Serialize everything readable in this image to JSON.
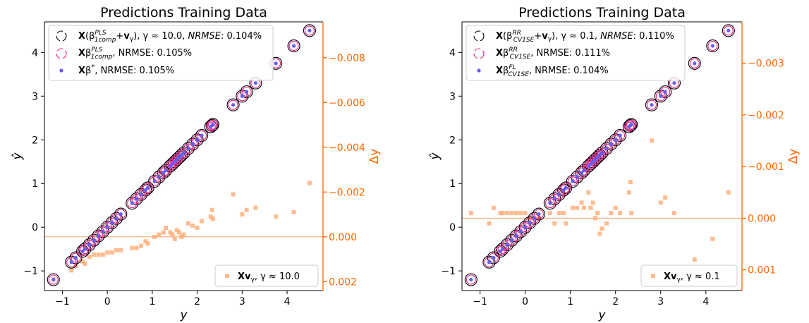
{
  "colors": {
    "ring_outer": "#000000",
    "ring_inner": "#e0218a",
    "dot": "#6a5cf2",
    "delta": "#ffa56b",
    "right_axis": "#ff6600"
  },
  "chart_data": [
    {
      "type": "scatter",
      "title": "Predictions Training Data",
      "xlabel": "y",
      "ylabel": "ŷ",
      "y2label": "Δy",
      "xlim": [
        -1.4,
        4.8
      ],
      "ylim": [
        -1.45,
        4.7
      ],
      "y2lim": [
        0.0024,
        -0.0096
      ],
      "y2_inverted": true,
      "xticks": [
        -1,
        0,
        1,
        2,
        3,
        4
      ],
      "yticks": [
        -1,
        0,
        1,
        2,
        3,
        4
      ],
      "y2ticks": [
        0.002,
        0.0,
        -0.002,
        -0.004,
        -0.006,
        -0.008
      ],
      "y2ticklabels": [
        "0.002",
        "0.000",
        "−0.002",
        "−0.004",
        "−0.006",
        "−0.008"
      ],
      "zero_line_y2": 0.0,
      "legend_top": {
        "placement": "top-left",
        "entries": [
          {
            "marker": "ring-black",
            "label": "X(β^PLS_1comp+v_γ), γ ≈ 10.0, NRMSE: 0.104%"
          },
          {
            "marker": "ring-pink",
            "label": "Xβ^PLS_1comp, NRMSE: 0.105%"
          },
          {
            "marker": "dot",
            "label": "Xβ*, NRMSE: 0.105%"
          }
        ]
      },
      "legend_bottom": {
        "placement": "bottom-right",
        "entries": [
          {
            "marker": "square",
            "label": "Xv_γ, γ ≈ 10.0"
          }
        ]
      },
      "points": {
        "y": [
          -1.2,
          -0.8,
          -0.7,
          -0.55,
          -0.5,
          -0.4,
          -0.3,
          -0.2,
          -0.1,
          0.0,
          0.1,
          0.2,
          0.3,
          0.55,
          0.65,
          0.75,
          0.85,
          0.9,
          1.05,
          1.15,
          1.25,
          1.3,
          1.4,
          1.45,
          1.5,
          1.55,
          1.6,
          1.65,
          1.7,
          1.8,
          1.9,
          2.0,
          2.1,
          2.3,
          2.33,
          2.35,
          2.8,
          3.0,
          3.1,
          3.3,
          3.75,
          4.15,
          4.5
        ]
      },
      "delta_points": {
        "x": [
          -1.2,
          -0.8,
          -0.7,
          -0.55,
          -0.5,
          -0.4,
          -0.3,
          -0.2,
          -0.1,
          0.0,
          0.1,
          0.2,
          0.3,
          0.55,
          0.65,
          0.75,
          0.85,
          0.9,
          1.05,
          1.15,
          1.25,
          1.3,
          1.4,
          1.45,
          1.5,
          1.55,
          1.6,
          1.65,
          1.7,
          1.8,
          1.9,
          2.0,
          2.1,
          2.3,
          2.33,
          2.35,
          2.8,
          3.0,
          3.1,
          3.3,
          3.75,
          4.15,
          4.5
        ],
        "y": [
          0.0019,
          0.0015,
          0.0013,
          0.0011,
          0.0012,
          0.0009,
          0.0008,
          0.0008,
          0.0008,
          0.0007,
          0.0007,
          0.0006,
          0.0006,
          0.0005,
          0.0005,
          0.0004,
          0.0002,
          0.0003,
          0.0,
          -0.0001,
          -0.0002,
          -0.0004,
          -0.0002,
          -0.0001,
          0.0001,
          -0.0003,
          -0.0002,
          0.0,
          -0.0001,
          -0.0006,
          -0.0005,
          -0.0004,
          -0.0007,
          -0.0009,
          -0.0012,
          -0.0008,
          -0.0019,
          -0.001,
          -0.0012,
          -0.0013,
          -0.0009,
          -0.0011,
          -0.0024
        ]
      }
    },
    {
      "type": "scatter",
      "title": "Predictions Training Data",
      "xlabel": "y",
      "ylabel": "ŷ",
      "y2label": "Δy",
      "xlim": [
        -1.4,
        4.8
      ],
      "ylim": [
        -1.45,
        4.7
      ],
      "y2lim": [
        0.0014,
        -0.0038
      ],
      "y2_inverted": true,
      "xticks": [
        -1,
        0,
        1,
        2,
        3,
        4
      ],
      "yticks": [
        -1,
        0,
        1,
        2,
        3,
        4
      ],
      "y2ticks": [
        0.001,
        0.0,
        -0.001,
        -0.002,
        -0.003
      ],
      "y2ticklabels": [
        "0.001",
        "0.000",
        "−0.001",
        "−0.002",
        "−0.003"
      ],
      "zero_line_y2": 0.0,
      "legend_top": {
        "placement": "top-left",
        "entries": [
          {
            "marker": "ring-black",
            "label": "X(β^RR_CV1SE+v_γ), γ ≈ 0.1, NRMSE: 0.110%"
          },
          {
            "marker": "ring-pink",
            "label": "Xβ^RR_CV1SE, NRMSE: 0.111%"
          },
          {
            "marker": "dot",
            "label": "Xβ^FL_CV1SE, NRMSE: 0.104%"
          }
        ]
      },
      "legend_bottom": {
        "placement": "bottom-right",
        "entries": [
          {
            "marker": "square",
            "label": "Xv_γ, γ ≈ 0.1"
          }
        ]
      },
      "points": {
        "y": [
          -1.2,
          -0.8,
          -0.7,
          -0.55,
          -0.5,
          -0.4,
          -0.3,
          -0.2,
          -0.1,
          0.0,
          0.1,
          0.2,
          0.3,
          0.55,
          0.65,
          0.75,
          0.85,
          0.9,
          1.05,
          1.15,
          1.25,
          1.3,
          1.4,
          1.45,
          1.5,
          1.55,
          1.6,
          1.65,
          1.7,
          1.8,
          1.9,
          2.0,
          2.1,
          2.3,
          2.33,
          2.35,
          2.8,
          3.0,
          3.1,
          3.3,
          3.75,
          4.15,
          4.5
        ]
      },
      "delta_points": {
        "x": [
          -1.2,
          -0.8,
          -0.7,
          -0.55,
          -0.5,
          -0.4,
          -0.3,
          -0.2,
          -0.1,
          0.0,
          0.1,
          0.2,
          0.3,
          0.55,
          0.65,
          0.75,
          0.85,
          0.9,
          1.05,
          1.15,
          1.25,
          1.3,
          1.4,
          1.45,
          1.5,
          1.55,
          1.6,
          1.65,
          1.7,
          1.8,
          1.9,
          2.0,
          2.1,
          2.3,
          2.33,
          2.35,
          2.8,
          3.0,
          3.1,
          3.3,
          3.75,
          4.15,
          4.5
        ],
        "y": [
          -0.0001,
          0.0001,
          -0.0002,
          -0.0001,
          -0.0001,
          -0.0001,
          -0.0001,
          -0.0001,
          -0.0001,
          -0.0001,
          0.0,
          0.0,
          0.0,
          -0.0001,
          0.0001,
          -0.0001,
          -0.0001,
          0.0001,
          -0.0002,
          -0.0002,
          -0.0003,
          -0.0002,
          -0.0005,
          -0.0002,
          -0.0003,
          0.0,
          -0.0001,
          0.0003,
          0.0002,
          0.0001,
          -0.0001,
          -0.0002,
          -0.0001,
          -0.0005,
          -0.0007,
          -0.0001,
          -0.0015,
          -0.0003,
          -0.0004,
          -0.0001,
          0.0008,
          0.0004,
          -0.0005
        ]
      }
    }
  ]
}
